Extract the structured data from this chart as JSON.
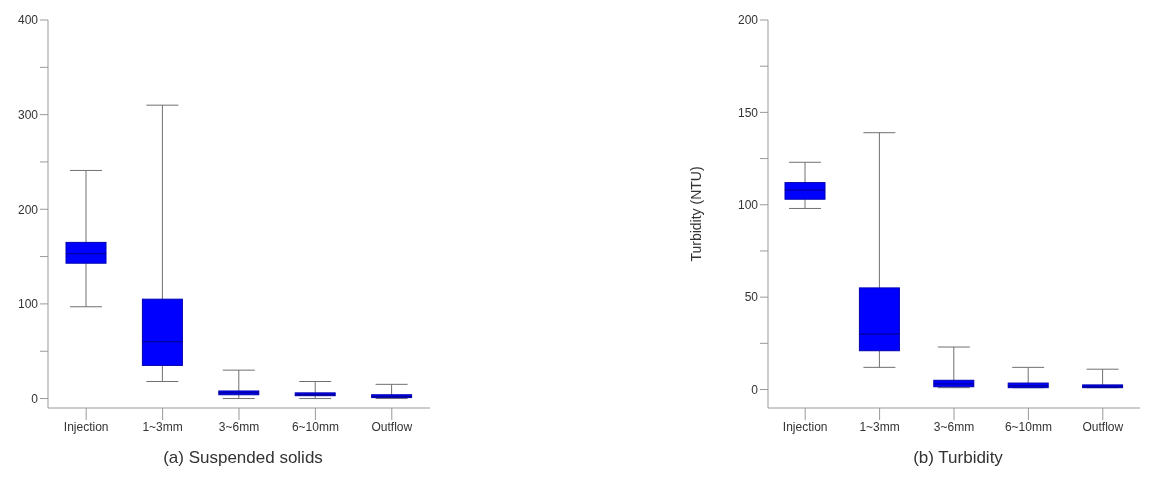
{
  "chart_data": [
    {
      "type": "box",
      "title": "(a) Suspended solids",
      "categories": [
        "Injection",
        "1~3mm",
        "3~6mm",
        "6~10mm",
        "Outflow"
      ],
      "color": "#0000ff",
      "ylim": [
        -10,
        400
      ],
      "yticks": [
        0,
        {
          "value": 50,
          "label": null
        },
        100,
        {
          "value": 150,
          "label": null
        },
        200,
        {
          "value": 250,
          "label": null
        },
        300,
        {
          "value": 350,
          "label": null
        },
        400
      ],
      "boxes": [
        {
          "low": 97,
          "q1": 143,
          "median": 153,
          "q3": 165,
          "high": 241
        },
        {
          "low": 18,
          "q1": 35,
          "median": 60,
          "q3": 105,
          "high": 310
        },
        {
          "low": 0,
          "q1": 4,
          "median": 6,
          "q3": 8,
          "high": 30
        },
        {
          "low": 0,
          "q1": 3,
          "median": 4,
          "q3": 6,
          "high": 18
        },
        {
          "low": 0,
          "q1": 1,
          "median": 2,
          "q3": 4,
          "high": 15
        }
      ]
    },
    {
      "type": "box",
      "title": "(b) Turbidity",
      "ylabel": "Turbidity (NTU)",
      "categories": [
        "Injection",
        "1~3mm",
        "3~6mm",
        "6~10mm",
        "Outflow"
      ],
      "color": "#0000ff",
      "ylim": [
        -10,
        200
      ],
      "yticks": [
        0,
        {
          "value": 25,
          "label": null
        },
        50,
        {
          "value": 75,
          "label": null
        },
        100,
        {
          "value": 125,
          "label": null
        },
        150,
        {
          "value": 175,
          "label": null
        },
        200
      ],
      "boxes": [
        {
          "low": 98,
          "q1": 103,
          "median": 108,
          "q3": 112,
          "high": 123
        },
        {
          "low": 12,
          "q1": 21,
          "median": 30,
          "q3": 55,
          "high": 139
        },
        {
          "low": 1,
          "q1": 1.5,
          "median": 3,
          "q3": 5,
          "high": 23
        },
        {
          "low": 1,
          "q1": 1,
          "median": 2,
          "q3": 3.5,
          "high": 12
        },
        {
          "low": 1,
          "q1": 1,
          "median": 1.5,
          "q3": 2.5,
          "high": 11
        }
      ]
    }
  ]
}
